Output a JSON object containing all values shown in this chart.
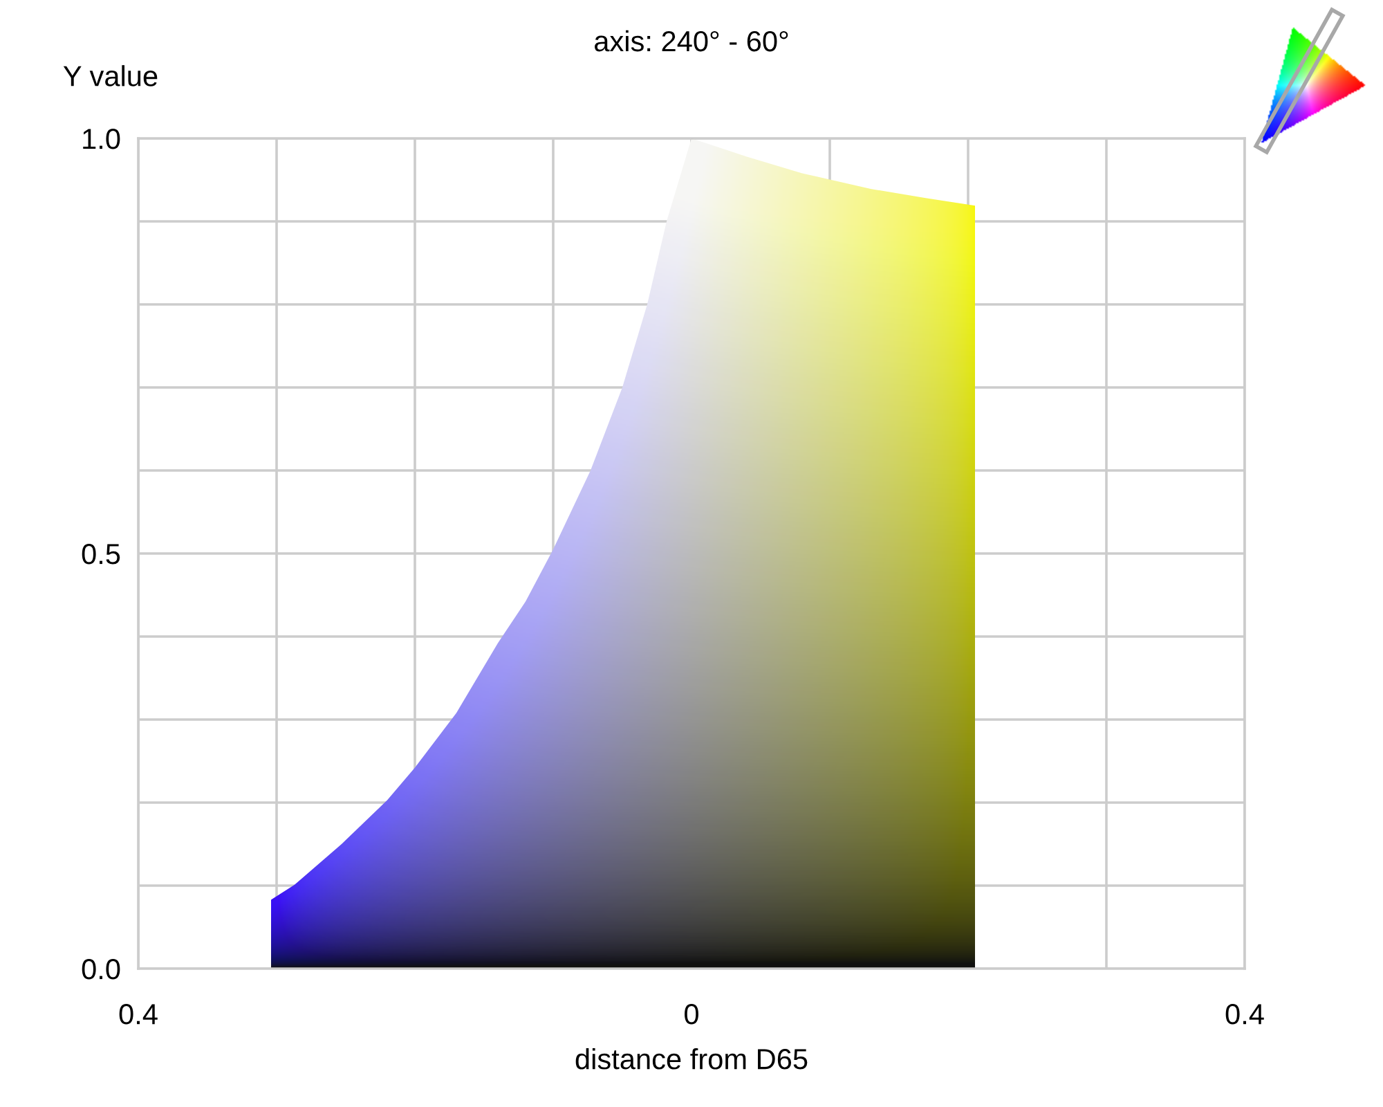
{
  "chart_data": {
    "type": "area",
    "title": "axis: 240° - 60°",
    "xlabel": "distance from D65",
    "ylabel": "Y value",
    "x": [
      -0.304,
      -0.287,
      -0.253,
      -0.22,
      -0.2,
      -0.17,
      -0.14,
      -0.12,
      -0.1,
      -0.073,
      -0.05,
      -0.032,
      -0.018,
      0,
      0.04,
      0.08,
      0.13,
      0.17,
      0.205
    ],
    "values": [
      0.083,
      0.101,
      0.15,
      0.203,
      0.242,
      0.308,
      0.392,
      0.442,
      0.505,
      0.6,
      0.7,
      0.8,
      0.9,
      1.0,
      0.978,
      0.958,
      0.939,
      0.928,
      0.919
    ],
    "color": "#a3a38f",
    "xlim": [
      -0.4,
      0.4
    ],
    "ylim": [
      0,
      1
    ],
    "xticks": [
      {
        "value": -0.4,
        "label": "0.4"
      },
      {
        "value": -0.3,
        "label": null
      },
      {
        "value": -0.2,
        "label": null
      },
      {
        "value": -0.1,
        "label": null
      },
      0,
      {
        "value": 0.1,
        "label": null
      },
      {
        "value": 0.2,
        "label": null
      },
      {
        "value": 0.3,
        "label": null
      },
      {
        "value": 0.4,
        "label": "0.4"
      }
    ],
    "yticks": [
      {
        "value": 0,
        "label": "0.0"
      },
      {
        "value": 0.1,
        "label": null
      },
      {
        "value": 0.2,
        "label": null
      },
      {
        "value": 0.3,
        "label": null
      },
      {
        "value": 0.4,
        "label": null
      },
      0.5,
      {
        "value": 0.6,
        "label": null
      },
      {
        "value": 0.7,
        "label": null
      },
      {
        "value": 0.8,
        "label": null
      },
      {
        "value": 0.9,
        "label": null
      },
      {
        "value": 1,
        "label": "1.0"
      }
    ],
    "grid": true
  }
}
